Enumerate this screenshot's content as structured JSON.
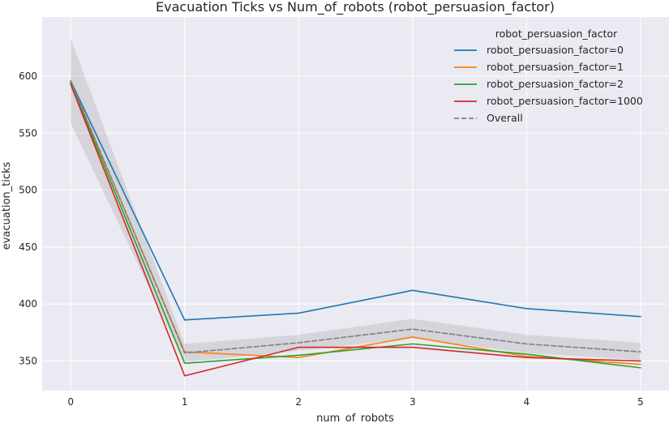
{
  "chart_data": {
    "type": "line",
    "title": "Evacuation Ticks vs Num_of_robots (robot_persuasion_factor)",
    "xlabel": "num_of_robots",
    "ylabel": "evacuation_ticks",
    "x": [
      0,
      1,
      2,
      3,
      4,
      5
    ],
    "xlim": [
      -0.25,
      5.25
    ],
    "ylim": [
      324,
      652
    ],
    "xticks": [
      0,
      1,
      2,
      3,
      4,
      5
    ],
    "yticks": [
      350,
      400,
      450,
      500,
      550,
      600
    ],
    "grid": true,
    "legend": {
      "title": "robot_persuasion_factor",
      "placement": "top-right"
    },
    "series": [
      {
        "name": "robot_persuasion_factor=0",
        "color": "#1f77b4",
        "style": "solid",
        "values": [
          596,
          386,
          392,
          412,
          396,
          389
        ]
      },
      {
        "name": "robot_persuasion_factor=1",
        "color": "#ff7f0e",
        "style": "solid",
        "values": [
          595,
          358,
          353,
          371,
          354,
          347
        ]
      },
      {
        "name": "robot_persuasion_factor=2",
        "color": "#2ca02c",
        "style": "solid",
        "values": [
          594,
          348,
          355,
          365,
          356,
          344
        ]
      },
      {
        "name": "robot_persuasion_factor=1000",
        "color": "#d62728",
        "style": "solid",
        "values": [
          593,
          337,
          362,
          362,
          353,
          350
        ]
      },
      {
        "name": "Overall",
        "color": "#7f7f7f",
        "style": "dashed",
        "values": [
          596,
          357,
          366,
          378,
          365,
          358
        ]
      }
    ],
    "confidence_band": {
      "series": "Overall",
      "lower": [
        559,
        349,
        359,
        370,
        357,
        351
      ],
      "upper": [
        633,
        365,
        373,
        387,
        373,
        366
      ]
    }
  }
}
